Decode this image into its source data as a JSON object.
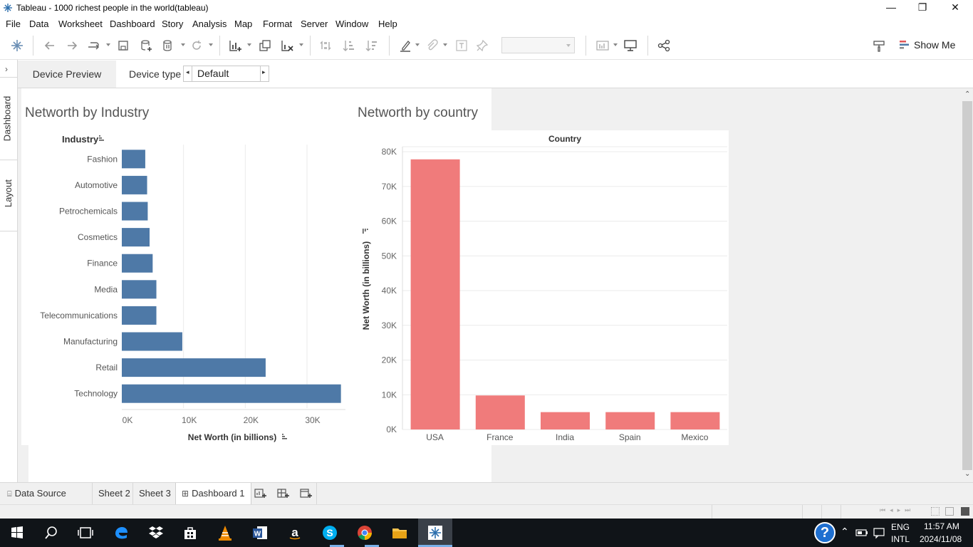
{
  "window": {
    "title": "Tableau - 1000 richest people in the world(tableau)",
    "controls": {
      "minimize": "—",
      "restore": "❐",
      "close": "✕"
    }
  },
  "menu": [
    "File",
    "Data",
    "Worksheet",
    "Dashboard",
    "Story",
    "Analysis",
    "Map",
    "Format",
    "Server",
    "Window",
    "Help"
  ],
  "toolbar": {
    "show_me_label": "Show Me",
    "icons": [
      "tableau-logo-icon",
      "back-icon",
      "forward-icon",
      "redo-icon",
      "save-icon",
      "new-datasource-icon",
      "pause-updates-icon",
      "refresh-icon",
      "new-worksheet-icon",
      "duplicate-sheet-icon",
      "clear-sheet-icon",
      "swap-icon",
      "sort-ascending-icon",
      "sort-descending-icon",
      "highlight-icon",
      "attach-icon",
      "text-icon",
      "pin-icon",
      "fit-dropdown",
      "show-cards-icon",
      "presentation-icon",
      "share-icon",
      "format-paintbrush-icon"
    ]
  },
  "side_tabs": {
    "dashboard": "Dashboard",
    "layout": "Layout"
  },
  "device_bar": {
    "preview_label": "Device Preview",
    "type_label": "Device type",
    "type_value": "Default"
  },
  "dashboard": {
    "left_title": "Networth by Industry",
    "right_title": "Networth by country"
  },
  "chart_data": [
    {
      "type": "bar",
      "orientation": "horizontal",
      "title": "Networth by Industry",
      "row_header": "Industry",
      "xlabel": "Net Worth (in billions)",
      "categories": [
        "Fashion",
        "Automotive",
        "Petrochemicals",
        "Cosmetics",
        "Finance",
        "Media",
        "Telecommunications",
        "Manufacturing",
        "Retail",
        "Technology"
      ],
      "values": [
        3800,
        4100,
        4200,
        4500,
        5000,
        5600,
        5600,
        9800,
        23300,
        35500
      ],
      "xlim": [
        0,
        36000
      ],
      "ticks": [
        0,
        10000,
        20000,
        30000
      ],
      "tick_labels": [
        "0K",
        "10K",
        "20K",
        "30K"
      ],
      "color": "#4e79a7",
      "grid": true
    },
    {
      "type": "bar",
      "orientation": "vertical",
      "title": "Networth by country",
      "column_header": "Country",
      "ylabel": "Net Worth (in billions)",
      "categories": [
        "USA",
        "France",
        "India",
        "Spain",
        "Mexico"
      ],
      "values": [
        77800,
        9800,
        5000,
        5000,
        5000
      ],
      "ylim": [
        0,
        80000
      ],
      "ticks": [
        0,
        10000,
        20000,
        30000,
        40000,
        50000,
        60000,
        70000,
        80000
      ],
      "tick_labels": [
        "0K",
        "10K",
        "20K",
        "30K",
        "40K",
        "50K",
        "60K",
        "70K",
        "80K"
      ],
      "color": "#f07b7b",
      "grid": true
    }
  ],
  "sheet_tabs": {
    "data_source": "Data Source",
    "tabs": [
      "Sheet 2",
      "Sheet 3",
      "Dashboard 1"
    ],
    "active": "Dashboard 1"
  },
  "taskbar": {
    "lang_top": "ENG",
    "lang_bottom": "INTL",
    "time": "11:57 AM",
    "date": "2024/11/08",
    "help_label": "?"
  }
}
